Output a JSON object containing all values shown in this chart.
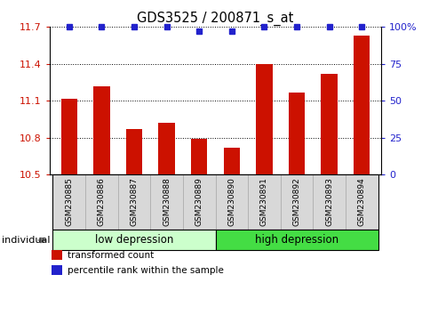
{
  "title": "GDS3525 / 200871_s_at",
  "samples": [
    "GSM230885",
    "GSM230886",
    "GSM230887",
    "GSM230888",
    "GSM230889",
    "GSM230890",
    "GSM230891",
    "GSM230892",
    "GSM230893",
    "GSM230894"
  ],
  "bar_values": [
    11.12,
    11.22,
    10.87,
    10.92,
    10.79,
    10.72,
    11.4,
    11.17,
    11.32,
    11.63
  ],
  "percentile_values": [
    100,
    100,
    100,
    100,
    97,
    97,
    100,
    100,
    100,
    100
  ],
  "bar_color": "#cc1100",
  "dot_color": "#2222cc",
  "ylim_left": [
    10.5,
    11.7
  ],
  "ylim_right": [
    0,
    100
  ],
  "yticks_left": [
    10.5,
    10.8,
    11.1,
    11.4,
    11.7
  ],
  "yticks_right": [
    0,
    25,
    50,
    75,
    100
  ],
  "ytick_labels_right": [
    "0",
    "25",
    "50",
    "75",
    "100%"
  ],
  "groups": [
    {
      "label": "low depression",
      "start": 0,
      "end": 5,
      "color": "#ccffcc"
    },
    {
      "label": "high depression",
      "start": 5,
      "end": 10,
      "color": "#44dd44"
    }
  ],
  "legend_entries": [
    {
      "label": "transformed count",
      "color": "#cc1100"
    },
    {
      "label": "percentile rank within the sample",
      "color": "#2222cc"
    }
  ],
  "sample_bg_color": "#d8d8d8",
  "sample_border_color": "#aaaaaa",
  "individual_label": "individual"
}
